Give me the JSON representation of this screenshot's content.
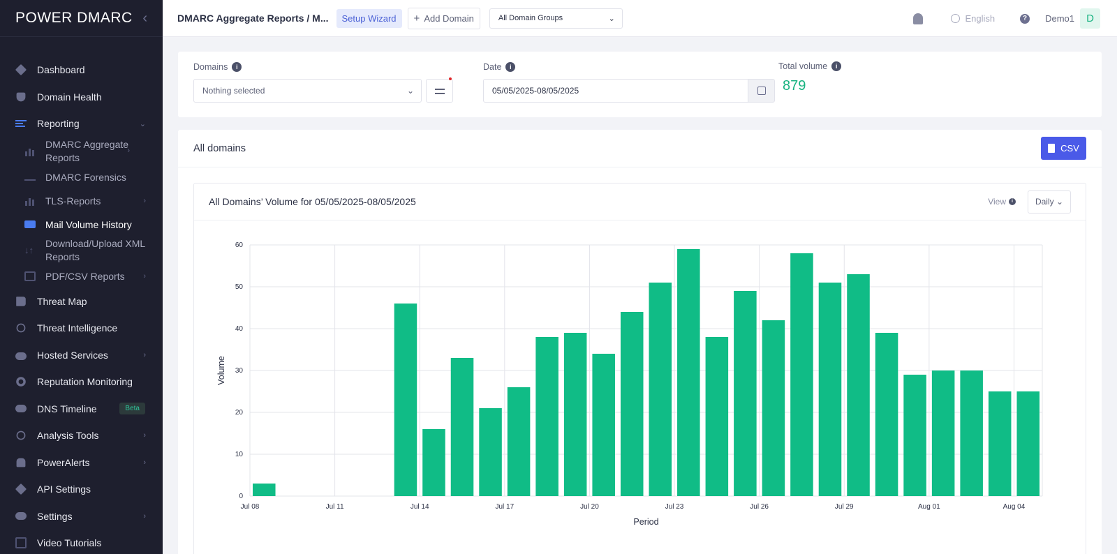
{
  "brand": {
    "logo": "POWER DMARC"
  },
  "sidebar": {
    "items": [
      {
        "label": "Dashboard"
      },
      {
        "label": "Domain Health"
      },
      {
        "label": "Reporting"
      },
      {
        "label": "Threat Map"
      },
      {
        "label": "Threat Intelligence"
      },
      {
        "label": "Hosted Services"
      },
      {
        "label": "Reputation Monitoring"
      },
      {
        "label": "DNS Timeline",
        "badge": "Beta"
      },
      {
        "label": "Analysis Tools"
      },
      {
        "label": "PowerAlerts"
      },
      {
        "label": "API Settings"
      },
      {
        "label": "Settings"
      },
      {
        "label": "Video Tutorials"
      }
    ],
    "reporting_sub": [
      {
        "label": "DMARC Aggregate Reports"
      },
      {
        "label": "DMARC Forensics"
      },
      {
        "label": "TLS-Reports"
      },
      {
        "label": "Mail Volume History"
      },
      {
        "label": "Download/Upload XML Reports"
      },
      {
        "label": "PDF/CSV Reports"
      }
    ]
  },
  "topbar": {
    "breadcrumb": "DMARC Aggregate Reports / M...",
    "setup_wizard": "Setup Wizard",
    "add_domain": "Add Domain",
    "domain_groups": "All Domain Groups",
    "language": "English",
    "help": "?",
    "user": "Demo1",
    "avatar_letter": "D"
  },
  "filters": {
    "domains_label": "Domains",
    "domains_value": "Nothing selected",
    "date_label": "Date",
    "date_value": "05/05/2025-08/05/2025",
    "total_label": "Total volume",
    "total_value": "879",
    "info": "i"
  },
  "main": {
    "title": "All domains",
    "csv_label": "CSV",
    "chart_title": "All Domains’ Volume for 05/05/2025-08/05/2025",
    "view_label": "View",
    "view_value": "Daily"
  },
  "colors": {
    "bar": "#10bc86",
    "accent": "#4a5ae8",
    "sidebar": "#1e1f2e"
  },
  "chart_data": {
    "type": "bar",
    "title": "All Domains’ Volume for 05/05/2025-08/05/2025",
    "xlabel": "Period",
    "ylabel": "Volume",
    "ylim": [
      0,
      60
    ],
    "yticks": [
      0,
      10,
      20,
      30,
      40,
      50,
      60
    ],
    "categories": [
      "Jul 08",
      "Jul 09",
      "Jul 10",
      "Jul 11",
      "Jul 12",
      "Jul 13",
      "Jul 14",
      "Jul 15",
      "Jul 16",
      "Jul 17",
      "Jul 18",
      "Jul 19",
      "Jul 20",
      "Jul 21",
      "Jul 22",
      "Jul 23",
      "Jul 24",
      "Jul 25",
      "Jul 26",
      "Jul 27",
      "Jul 28",
      "Jul 29",
      "Jul 30",
      "Jul 31",
      "Aug 01",
      "Aug 02",
      "Aug 03",
      "Aug 04"
    ],
    "values": [
      3,
      0,
      0,
      0,
      0,
      46,
      16,
      33,
      21,
      26,
      38,
      39,
      34,
      44,
      51,
      59,
      38,
      49,
      42,
      58,
      51,
      53,
      39,
      29,
      30,
      30,
      25,
      25
    ],
    "xtick_labels": [
      "Jul 08",
      "Jul 11",
      "Jul 14",
      "Jul 17",
      "Jul 20",
      "Jul 23",
      "Jul 26",
      "Jul 29",
      "Aug 01",
      "Aug 04"
    ],
    "grid": true
  }
}
